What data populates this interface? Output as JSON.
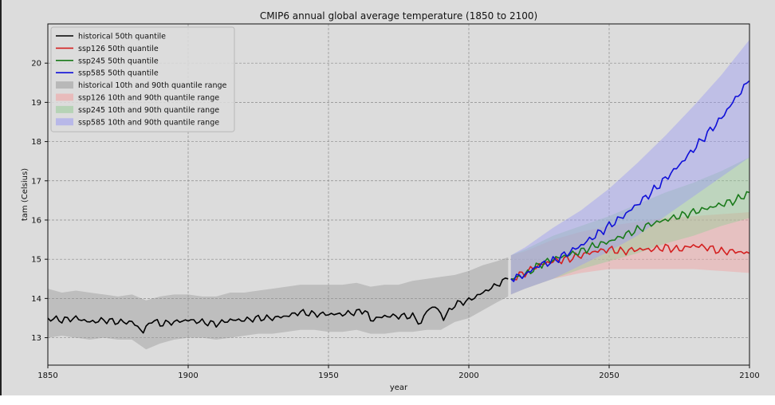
{
  "chart_data": {
    "type": "line",
    "title": "CMIP6 annual global average temperature (1850 to 2100)",
    "xlabel": "year",
    "ylabel": "tam (Celsius)",
    "xlim": [
      1850,
      2100
    ],
    "ylim": [
      12.3,
      21.0
    ],
    "xticks": [
      1850,
      1900,
      1950,
      2000,
      2050,
      2100
    ],
    "yticks": [
      13,
      14,
      15,
      16,
      17,
      18,
      19,
      20
    ],
    "grid": true,
    "legend_position": "top-left",
    "colors": {
      "historical": "#000000",
      "ssp126": "#d42020",
      "ssp245": "#1a7a1a",
      "ssp585": "#1010d8",
      "band_historical": "#9a9a9a",
      "band_ssp126": "#f2a0a0",
      "band_ssp245": "#98cc98",
      "band_ssp585": "#9b9bf2",
      "plot_background": "#dcdcdc",
      "figure_background": "#dcdcdc"
    },
    "series": [
      {
        "name": "historical 50th quantile",
        "key": "historical",
        "points": [
          [
            1850,
            13.5
          ],
          [
            1855,
            13.45
          ],
          [
            1860,
            13.5
          ],
          [
            1865,
            13.4
          ],
          [
            1870,
            13.45
          ],
          [
            1875,
            13.4
          ],
          [
            1880,
            13.4
          ],
          [
            1884,
            13.15
          ],
          [
            1887,
            13.45
          ],
          [
            1890,
            13.35
          ],
          [
            1895,
            13.4
          ],
          [
            1900,
            13.45
          ],
          [
            1905,
            13.4
          ],
          [
            1910,
            13.35
          ],
          [
            1915,
            13.45
          ],
          [
            1920,
            13.45
          ],
          [
            1925,
            13.5
          ],
          [
            1930,
            13.5
          ],
          [
            1935,
            13.55
          ],
          [
            1940,
            13.65
          ],
          [
            1945,
            13.6
          ],
          [
            1950,
            13.6
          ],
          [
            1955,
            13.6
          ],
          [
            1960,
            13.65
          ],
          [
            1963,
            13.7
          ],
          [
            1965,
            13.45
          ],
          [
            1970,
            13.55
          ],
          [
            1975,
            13.55
          ],
          [
            1980,
            13.55
          ],
          [
            1983,
            13.35
          ],
          [
            1985,
            13.7
          ],
          [
            1988,
            13.8
          ],
          [
            1991,
            13.5
          ],
          [
            1995,
            13.85
          ],
          [
            2000,
            13.95
          ],
          [
            2005,
            14.15
          ],
          [
            2010,
            14.35
          ],
          [
            2014,
            14.5
          ]
        ]
      },
      {
        "name": "ssp126 50th quantile",
        "key": "ssp126",
        "points": [
          [
            2015,
            14.5
          ],
          [
            2020,
            14.65
          ],
          [
            2025,
            14.85
          ],
          [
            2030,
            14.95
          ],
          [
            2035,
            15.0
          ],
          [
            2040,
            15.1
          ],
          [
            2045,
            15.2
          ],
          [
            2050,
            15.25
          ],
          [
            2055,
            15.2
          ],
          [
            2060,
            15.25
          ],
          [
            2065,
            15.25
          ],
          [
            2070,
            15.3
          ],
          [
            2075,
            15.25
          ],
          [
            2080,
            15.35
          ],
          [
            2085,
            15.3
          ],
          [
            2090,
            15.2
          ],
          [
            2095,
            15.2
          ],
          [
            2100,
            15.15
          ]
        ]
      },
      {
        "name": "ssp245 50th quantile",
        "key": "ssp245",
        "points": [
          [
            2015,
            14.5
          ],
          [
            2020,
            14.6
          ],
          [
            2025,
            14.85
          ],
          [
            2030,
            15.0
          ],
          [
            2035,
            15.1
          ],
          [
            2040,
            15.2
          ],
          [
            2045,
            15.35
          ],
          [
            2050,
            15.45
          ],
          [
            2055,
            15.6
          ],
          [
            2060,
            15.75
          ],
          [
            2065,
            15.9
          ],
          [
            2070,
            16.0
          ],
          [
            2075,
            16.1
          ],
          [
            2080,
            16.2
          ],
          [
            2085,
            16.3
          ],
          [
            2090,
            16.4
          ],
          [
            2095,
            16.5
          ],
          [
            2100,
            16.7
          ]
        ]
      },
      {
        "name": "ssp585 50th quantile",
        "key": "ssp585",
        "points": [
          [
            2015,
            14.5
          ],
          [
            2020,
            14.6
          ],
          [
            2025,
            14.85
          ],
          [
            2030,
            14.95
          ],
          [
            2035,
            15.15
          ],
          [
            2040,
            15.35
          ],
          [
            2045,
            15.6
          ],
          [
            2050,
            15.85
          ],
          [
            2055,
            16.1
          ],
          [
            2060,
            16.4
          ],
          [
            2065,
            16.7
          ],
          [
            2070,
            17.05
          ],
          [
            2075,
            17.4
          ],
          [
            2080,
            17.8
          ],
          [
            2085,
            18.2
          ],
          [
            2090,
            18.6
          ],
          [
            2095,
            19.1
          ],
          [
            2100,
            19.55
          ]
        ]
      }
    ],
    "bands": [
      {
        "name": "historical 10th and 90th quantile range",
        "key": "historical",
        "x": [
          1850,
          1855,
          1860,
          1865,
          1870,
          1875,
          1880,
          1885,
          1890,
          1895,
          1900,
          1905,
          1910,
          1915,
          1920,
          1925,
          1930,
          1935,
          1940,
          1945,
          1950,
          1955,
          1960,
          1965,
          1970,
          1975,
          1980,
          1985,
          1990,
          1995,
          2000,
          2005,
          2010,
          2014
        ],
        "lower": [
          13.0,
          13.05,
          13.0,
          12.95,
          13.0,
          12.95,
          12.95,
          12.7,
          12.85,
          12.95,
          13.0,
          13.0,
          12.95,
          13.0,
          13.05,
          13.1,
          13.1,
          13.15,
          13.2,
          13.2,
          13.15,
          13.15,
          13.2,
          13.1,
          13.1,
          13.15,
          13.15,
          13.2,
          13.2,
          13.4,
          13.5,
          13.7,
          13.9,
          14.05
        ],
        "upper": [
          14.25,
          14.15,
          14.2,
          14.15,
          14.1,
          14.05,
          14.1,
          13.95,
          14.05,
          14.1,
          14.1,
          14.05,
          14.05,
          14.15,
          14.15,
          14.2,
          14.25,
          14.3,
          14.35,
          14.35,
          14.35,
          14.35,
          14.4,
          14.3,
          14.35,
          14.35,
          14.45,
          14.5,
          14.55,
          14.6,
          14.7,
          14.85,
          14.95,
          15.05
        ]
      },
      {
        "name": "ssp126 10th and 90th quantile range",
        "key": "ssp126",
        "x": [
          2015,
          2020,
          2030,
          2040,
          2050,
          2060,
          2070,
          2080,
          2090,
          2100
        ],
        "lower": [
          14.1,
          14.25,
          14.5,
          14.65,
          14.75,
          14.75,
          14.75,
          14.75,
          14.7,
          14.65
        ],
        "upper": [
          15.1,
          15.2,
          15.5,
          15.7,
          15.85,
          15.95,
          16.05,
          16.1,
          16.15,
          16.2
        ]
      },
      {
        "name": "ssp245 10th and 90th quantile range",
        "key": "ssp245",
        "x": [
          2015,
          2020,
          2030,
          2040,
          2050,
          2060,
          2070,
          2080,
          2090,
          2100
        ],
        "lower": [
          14.1,
          14.25,
          14.5,
          14.75,
          14.95,
          15.15,
          15.4,
          15.6,
          15.85,
          16.05
        ],
        "upper": [
          15.1,
          15.25,
          15.6,
          15.85,
          16.1,
          16.4,
          16.7,
          16.95,
          17.25,
          17.6
        ]
      },
      {
        "name": "ssp585 10th and 90th quantile range",
        "key": "ssp585",
        "x": [
          2015,
          2020,
          2030,
          2040,
          2050,
          2060,
          2070,
          2080,
          2090,
          2100
        ],
        "lower": [
          14.1,
          14.25,
          14.5,
          14.85,
          15.2,
          15.6,
          16.1,
          16.6,
          17.1,
          17.6
        ],
        "upper": [
          15.1,
          15.3,
          15.8,
          16.25,
          16.8,
          17.45,
          18.15,
          18.9,
          19.7,
          20.6
        ]
      }
    ]
  }
}
